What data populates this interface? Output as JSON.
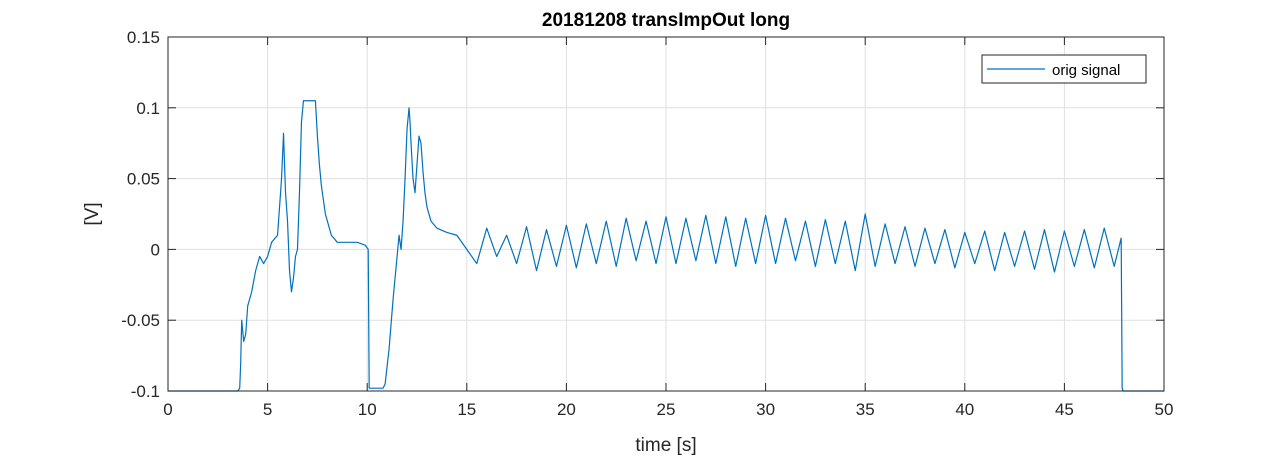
{
  "chart_data": {
    "type": "line",
    "title": "20181208 transImpOut long",
    "xlabel": "time [s]",
    "ylabel": "[V]",
    "xlim": [
      0,
      50
    ],
    "ylim": [
      -0.1,
      0.15
    ],
    "xticks": [
      0,
      5,
      10,
      15,
      20,
      25,
      30,
      35,
      40,
      45,
      50
    ],
    "yticks": [
      -0.1,
      -0.05,
      0,
      0.05,
      0.1,
      0.15
    ],
    "xtick_labels": [
      "0",
      "5",
      "10",
      "15",
      "20",
      "25",
      "30",
      "35",
      "40",
      "45",
      "50"
    ],
    "ytick_labels": [
      "-0.1",
      "-0.05",
      "0",
      "0.05",
      "0.1",
      "0.15"
    ],
    "grid": true,
    "legend_position": "top-right",
    "line_color": "#0072BD",
    "series": [
      {
        "name": "orig signal",
        "x": [
          0,
          3.5,
          3.6,
          3.65,
          3.7,
          3.8,
          3.9,
          4.0,
          4.2,
          4.4,
          4.6,
          4.8,
          5.0,
          5.2,
          5.5,
          5.6,
          5.7,
          5.8,
          5.85,
          5.9,
          6.0,
          6.1,
          6.2,
          6.3,
          6.4,
          6.5,
          6.6,
          6.7,
          6.8,
          7.4,
          7.5,
          7.6,
          7.7,
          7.8,
          7.9,
          8.0,
          8.2,
          8.5,
          9.0,
          9.5,
          9.9,
          10.05,
          10.1,
          10.2,
          10.8,
          10.9,
          11.1,
          11.3,
          11.5,
          11.6,
          11.7,
          11.8,
          11.9,
          12.0,
          12.1,
          12.15,
          12.2,
          12.3,
          12.4,
          12.5,
          12.6,
          12.7,
          12.8,
          12.9,
          13.0,
          13.2,
          13.5,
          14.0,
          14.5,
          15.0,
          15.5,
          16.0,
          16.5,
          17.0,
          17.5,
          18.0,
          18.5,
          19.0,
          19.5,
          20.0,
          20.5,
          21.0,
          21.5,
          22.0,
          22.5,
          23.0,
          23.5,
          24.0,
          24.5,
          25.0,
          25.5,
          26.0,
          26.5,
          27.0,
          27.5,
          28.0,
          28.5,
          29.0,
          29.5,
          30.0,
          30.5,
          31.0,
          31.5,
          32.0,
          32.5,
          33.0,
          33.5,
          34.0,
          34.5,
          35.0,
          35.5,
          36.0,
          36.5,
          37.0,
          37.5,
          38.0,
          38.5,
          39.0,
          39.5,
          40.0,
          40.5,
          41.0,
          41.5,
          42.0,
          42.5,
          43.0,
          43.5,
          44.0,
          44.5,
          45.0,
          45.5,
          46.0,
          46.5,
          47.0,
          47.5,
          47.85,
          47.9,
          47.95,
          50
        ],
        "y": [
          -0.1,
          -0.1,
          -0.098,
          -0.08,
          -0.05,
          -0.065,
          -0.06,
          -0.04,
          -0.03,
          -0.015,
          -0.005,
          -0.01,
          -0.005,
          0.005,
          0.01,
          0.03,
          0.05,
          0.082,
          0.06,
          0.04,
          0.02,
          -0.015,
          -0.03,
          -0.02,
          -0.005,
          0.0,
          0.04,
          0.09,
          0.105,
          0.105,
          0.08,
          0.06,
          0.045,
          0.035,
          0.025,
          0.02,
          0.01,
          0.005,
          0.005,
          0.005,
          0.003,
          0.0,
          -0.098,
          -0.098,
          -0.098,
          -0.095,
          -0.07,
          -0.035,
          -0.005,
          0.01,
          0.0,
          0.02,
          0.05,
          0.085,
          0.1,
          0.09,
          0.075,
          0.05,
          0.04,
          0.06,
          0.08,
          0.075,
          0.055,
          0.04,
          0.03,
          0.02,
          0.015,
          0.012,
          0.01,
          0.0,
          -0.01,
          0.015,
          -0.005,
          0.01,
          -0.01,
          0.016,
          -0.015,
          0.014,
          -0.012,
          0.017,
          -0.013,
          0.018,
          -0.01,
          0.02,
          -0.012,
          0.022,
          -0.008,
          0.02,
          -0.01,
          0.023,
          -0.01,
          0.022,
          -0.008,
          0.024,
          -0.01,
          0.023,
          -0.012,
          0.022,
          -0.01,
          0.024,
          -0.01,
          0.022,
          -0.008,
          0.02,
          -0.012,
          0.021,
          -0.01,
          0.02,
          -0.015,
          0.025,
          -0.012,
          0.018,
          -0.01,
          0.016,
          -0.012,
          0.015,
          -0.01,
          0.014,
          -0.013,
          0.012,
          -0.01,
          0.013,
          -0.015,
          0.012,
          -0.012,
          0.013,
          -0.014,
          0.014,
          -0.016,
          0.013,
          -0.012,
          0.014,
          -0.013,
          0.015,
          -0.012,
          0.008,
          -0.098,
          -0.1,
          -0.1
        ]
      }
    ]
  }
}
